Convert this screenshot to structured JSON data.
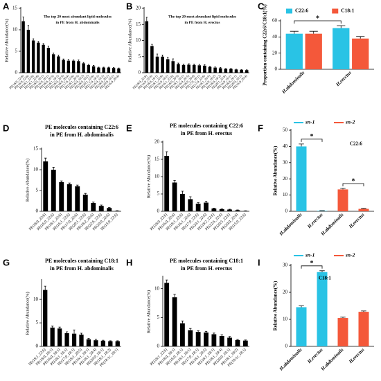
{
  "chart_data": [
    {
      "type": "bar",
      "panel": "A",
      "title": [
        "The top 20 most abundant lipid molecules",
        "in PE from H. abdominalis"
      ],
      "y_label": "Relative Abundance(%)",
      "categories": [
        "PE(18:0_22:6)",
        "PE(16:0_22:6)",
        "PE(18:1_22:6)",
        "PE(16:1_22:6)",
        "PE(18:0_18:1)",
        "PE(16:0_18:1)",
        "PE(18:0_20:5)",
        "PE(18:1_18:1)",
        "PE(16:0_20:5)",
        "PE(18:0_20:4)",
        "PE(17:0_22:6)",
        "PE(18:1_20:5)",
        "PE(16:0_18:2)",
        "PE(18:0_18:2)",
        "PE(20:1_22:6)",
        "PE(17:0_18:1)",
        "PE(16:0_16:1)",
        "PE(18:0_20:1)",
        "PE(20:0_18:1)",
        "PE(16:0_20:4)"
      ],
      "values": [
        12,
        10,
        7.5,
        7,
        6.5,
        5.8,
        4.3,
        3.8,
        3,
        2.8,
        2.8,
        2.7,
        2.2,
        1.8,
        1.5,
        1.2,
        1.2,
        1.2,
        1.1,
        1.0
      ],
      "errors": [
        1,
        1,
        0.4,
        0.3,
        0.3,
        0.4,
        0.3,
        0.3,
        0.2,
        0.3,
        0.2,
        0.3,
        0.2,
        0.2,
        0.2,
        0.1,
        0.1,
        0.1,
        0.1,
        0.1
      ],
      "color": "#000000",
      "ylim": [
        0,
        15
      ],
      "yticks": [
        0,
        5,
        10,
        15
      ]
    },
    {
      "type": "bar",
      "panel": "B",
      "title": [
        "The top 20 most abundant lipid molecules",
        "in PE from H. erectus"
      ],
      "y_label": "Relative Abundance(%)",
      "categories": [
        "PE(18:0_22:6)",
        "PE(16:0_22:6)",
        "PE(18:0_18:1)",
        "PE(18:1_22:6)",
        "PE(16:0_18:1)",
        "PE(16:1_22:6)",
        "PE(18:0_20:5)",
        "PE(18:1_18:1)",
        "PE(16:0_20:5)",
        "PE(18:0_20:4)",
        "PE(17:0_18:1)",
        "PE(17:0_22:6)",
        "PE(18:1_20:5)",
        "PE(16:0_18:2)",
        "PE(18:0_18:2)",
        "PE(20:1_22:6)",
        "PE(16:0_16:1)",
        "PE(18:0_20:1)",
        "PE(20:0_18:1)",
        "PE(16:0_20:4)"
      ],
      "values": [
        16,
        8.3,
        5,
        5,
        4.2,
        3.6,
        2.7,
        2.4,
        2.5,
        2.4,
        2.3,
        2.2,
        1.8,
        1.6,
        1.4,
        1.2,
        1.2,
        1.0,
        0.9,
        0.8
      ],
      "errors": [
        1.2,
        0.5,
        0.8,
        0.5,
        0.6,
        0.7,
        0.3,
        0.3,
        0.3,
        0.3,
        0.3,
        0.3,
        0.2,
        0.2,
        0.2,
        0.1,
        0.1,
        0.1,
        0.1,
        0.1
      ],
      "color": "#000000",
      "ylim": [
        0,
        20
      ],
      "yticks": [
        0,
        5,
        10,
        15,
        20
      ]
    },
    {
      "type": "bar",
      "panel": "C",
      "y_label": "Proportion containing C22:6/C18:1(%)",
      "categories": [
        "H.abdominalis",
        "H.erectus"
      ],
      "series": [
        {
          "name": "C22:6",
          "color": "#29c3e5",
          "values": [
            44,
            51
          ],
          "errors": [
            3,
            3
          ]
        },
        {
          "name": "C18:1",
          "color": "#f4583a",
          "values": [
            44,
            38
          ],
          "errors": [
            3,
            2.5
          ]
        }
      ],
      "significance": [
        {
          "label": "*",
          "from": 0,
          "to": 1,
          "series": 0
        }
      ],
      "legend_marker": "box",
      "ylim": [
        0,
        60
      ],
      "yticks": [
        0,
        20,
        40,
        60
      ]
    },
    {
      "type": "bar",
      "panel": "D",
      "title": [
        "PE molecules containing C22:6",
        "in PE from H. abdominalis"
      ],
      "y_label": "Relative Abundance(%)",
      "categories": [
        "PE(18:0_22:6)",
        "PE(16:0_22:6)",
        "PE(18:1_22:6)",
        "PE(16:1_22:6)",
        "PE(17:0_22:6)",
        "PE(20:1_22:6)",
        "PE(18:2_22:6)",
        "PE(22:6_22:6)",
        "PE(20:0_22:6)",
        "PE(15:0_22:6)"
      ],
      "values": [
        12,
        10,
        7,
        6.5,
        6,
        4,
        2,
        1.3,
        0.8,
        0.1
      ],
      "errors": [
        0.8,
        0.6,
        0.3,
        0.3,
        0.3,
        0.3,
        0.2,
        0.2,
        0.1,
        0.05
      ],
      "color": "#000000",
      "ylim": [
        0,
        15
      ],
      "yticks": [
        0,
        5,
        10,
        15
      ]
    },
    {
      "type": "bar",
      "panel": "E",
      "title": [
        "PE molecules containing C22:6",
        "in PE from H. erectus"
      ],
      "y_label": "Relative Abundance(%)",
      "categories": [
        "PE(18:0_22:6)",
        "PE(16:0_22:6)",
        "PE(18:1_22:6)",
        "PE(16:1_22:6)",
        "PE(17:0_22:6)",
        "PE(20:1_22:6)",
        "PE(18:2_22:6)",
        "PE(22:6_22:6)",
        "PE(20:5_22:6)",
        "PE(20:0_22:6)",
        "PE(15:0_22:6)"
      ],
      "values": [
        16,
        8.3,
        5,
        3.5,
        2.2,
        2.5,
        0.8,
        0.6,
        0.5,
        0.3,
        0.1
      ],
      "errors": [
        1.2,
        0.6,
        0.8,
        0.7,
        0.3,
        0.4,
        0.1,
        0.1,
        0.1,
        0.1,
        0.05
      ],
      "color": "#000000",
      "ylim": [
        0,
        20
      ],
      "yticks": [
        0,
        5,
        10,
        15,
        20
      ]
    },
    {
      "type": "bar",
      "panel": "F",
      "y_label": "Relative Abundance(%)",
      "note": "C22:6",
      "categories": [
        "H.abdominalis",
        "H.erectus",
        "H.abdominalis",
        "H.erectus"
      ],
      "series": [
        {
          "name": "sn-1",
          "color": "#29c3e5",
          "values": [
            40,
            0.3,
            null,
            null
          ],
          "errors": [
            1.5,
            0.1,
            null,
            null
          ]
        },
        {
          "name": "sn-2",
          "color": "#f4583a",
          "values": [
            null,
            null,
            13.5,
            1.5
          ],
          "errors": [
            null,
            null,
            0.6,
            0.3
          ]
        }
      ],
      "significance": [
        {
          "label": "*",
          "from": 0,
          "to": 1
        },
        {
          "label": "*",
          "from": 2,
          "to": 3
        }
      ],
      "legend_marker": "line",
      "ylim": [
        0,
        50
      ],
      "yticks": [
        0,
        10,
        20,
        30,
        40,
        50
      ]
    },
    {
      "type": "bar",
      "panel": "G",
      "title": [
        "PE molecules containing C18:1",
        "in PE from H. abdominalis"
      ],
      "y_label": "Relative Abundance(%)",
      "categories": [
        "PE(18:1_22:6)",
        "PE(18:0_18:1)",
        "PE(16:0_18:1)",
        "PE(18:1_18:1)",
        "PE(17:0_18:1)",
        "PE(18:1_20:5)",
        "PE(16:1_18:1)",
        "PE(18:1_20:4)",
        "PE(20:0_18:1)",
        "PE(18:1_18:2)",
        "PE(18:1c_18:1)"
      ],
      "values": [
        12,
        4,
        3.8,
        2.8,
        2.7,
        2.5,
        1.5,
        1.3,
        1.2,
        1.1,
        1.1
      ],
      "errors": [
        0.8,
        0.3,
        0.3,
        0.3,
        0.8,
        0.3,
        0.2,
        0.2,
        0.1,
        0.1,
        0.1
      ],
      "color": "#000000",
      "ylim": [
        0,
        14
      ],
      "yticks": [
        0,
        5,
        10
      ]
    },
    {
      "type": "bar",
      "panel": "H",
      "title": [
        "PE molecules containing C18:1",
        "in PE from H. erectus"
      ],
      "y_label": "Relative Abundance(%)",
      "categories": [
        "PE(18:1_22:6)",
        "PE(18:0_18:1)",
        "PE(16:0_18:1)",
        "PE(18:1_18:1)",
        "PE(17:0_18:1)",
        "PE(18:1_20:5)",
        "PE(16:1_18:1)",
        "PE(18:1_20:4)",
        "PE(20:0_18:1)",
        "PE(18:1_18:2)",
        "PE(18:1c_18:1)"
      ],
      "values": [
        11,
        8.5,
        4,
        2.8,
        2.5,
        2.4,
        2.1,
        1.8,
        1.5,
        1.1,
        1.0
      ],
      "errors": [
        0.5,
        0.5,
        0.4,
        0.3,
        0.2,
        0.2,
        0.2,
        0.2,
        0.2,
        0.1,
        0.1
      ],
      "color": "#000000",
      "ylim": [
        0,
        12
      ],
      "yticks": [
        0,
        5,
        10
      ]
    },
    {
      "type": "bar",
      "panel": "I",
      "y_label": "Relative Abundance(%)",
      "note": "C18:1",
      "categories": [
        "H.abdominalis",
        "H.erectus",
        "H.abdominalis",
        "H.erectus"
      ],
      "series": [
        {
          "name": "sn-1",
          "color": "#29c3e5",
          "values": [
            14.5,
            27.5,
            null,
            null
          ],
          "errors": [
            0.5,
            0.5,
            null,
            null
          ]
        },
        {
          "name": "sn-2",
          "color": "#f4583a",
          "values": [
            null,
            null,
            10.5,
            12.8
          ],
          "errors": [
            null,
            null,
            0.3,
            0.3
          ]
        }
      ],
      "significance": [
        {
          "label": "*",
          "from": 0,
          "to": 1
        }
      ],
      "legend_marker": "line",
      "ylim": [
        0,
        30
      ],
      "yticks": [
        0,
        10,
        20,
        30
      ]
    }
  ]
}
